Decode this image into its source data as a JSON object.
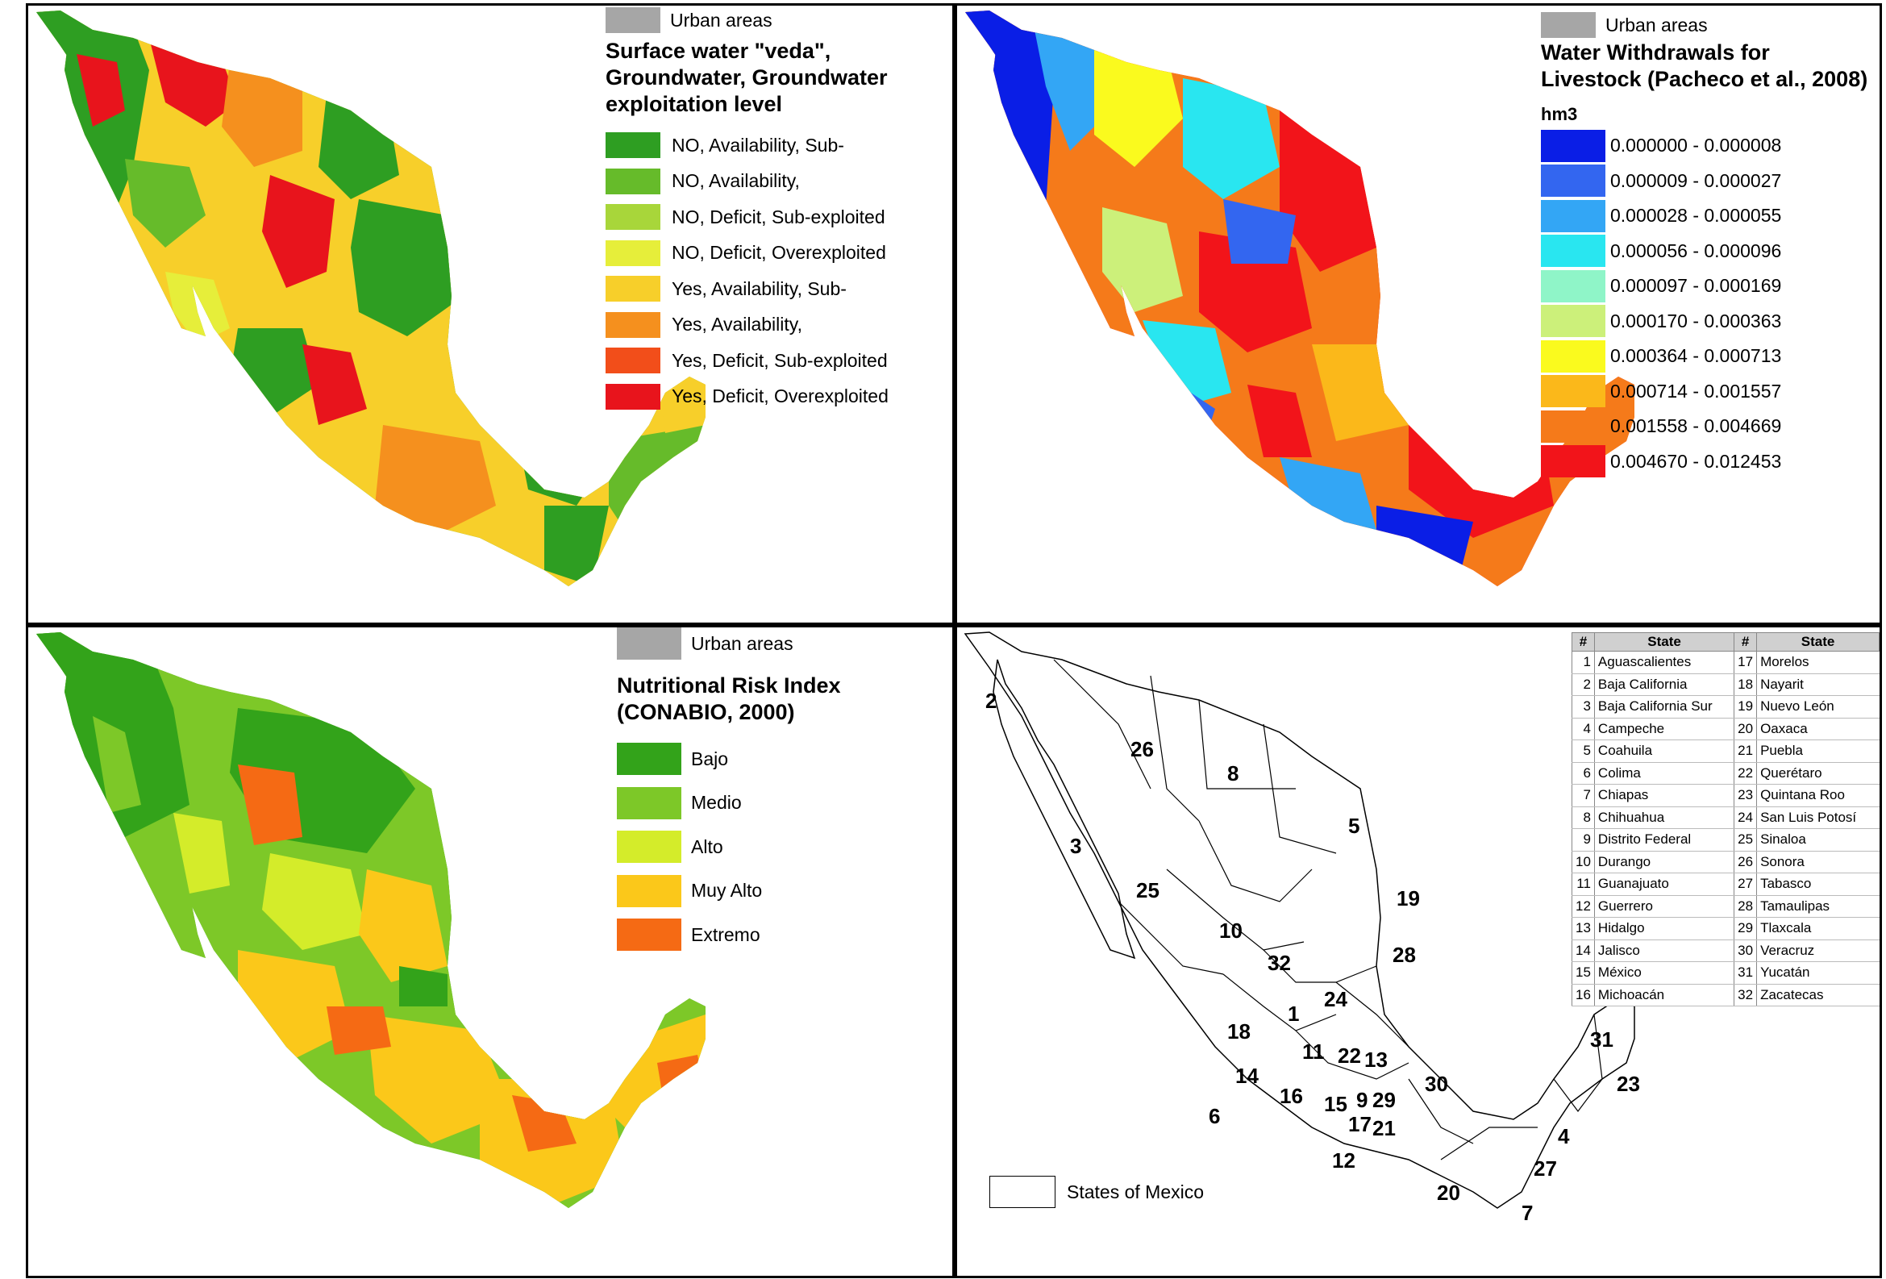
{
  "panels": {
    "surface_water": {
      "urban_label": "Urban areas",
      "title_lines": [
        "Surface water \"veda\",",
        "Groundwater, Groundwater",
        "exploitation level"
      ],
      "legend": [
        {
          "label": "NO, Availability, Sub-",
          "color": "#2e9e22"
        },
        {
          "label": "NO, Availability,",
          "color": "#66bb2a"
        },
        {
          "label": "NO, Deficit, Sub-exploited",
          "color": "#a8d63a"
        },
        {
          "label": "NO, Deficit, Overexploited",
          "color": "#e6ee3a"
        },
        {
          "label": "Yes, Availability, Sub-",
          "color": "#f7cf2a"
        },
        {
          "label": "Yes, Availability,",
          "color": "#f5901e"
        },
        {
          "label": "Yes, Deficit, Sub-exploited",
          "color": "#f24e1a"
        },
        {
          "label": "Yes, Deficit, Overexploited",
          "color": "#e8141c"
        }
      ]
    },
    "livestock": {
      "urban_label": "Urban areas",
      "title_lines": [
        "Water Withdrawals for",
        "Livestock (Pacheco et al., 2008)"
      ],
      "unit": "hm3",
      "legend": [
        {
          "label": "0.000000 - 0.000008",
          "color": "#0a1ee6"
        },
        {
          "label": "0.000009 - 0.000027",
          "color": "#3366f0"
        },
        {
          "label": "0.000028 - 0.000055",
          "color": "#33a6f5"
        },
        {
          "label": "0.000056 - 0.000096",
          "color": "#29e6f0"
        },
        {
          "label": "0.000097 - 0.000169",
          "color": "#8ff5c8"
        },
        {
          "label": "0.000170 - 0.000363",
          "color": "#ccf07a"
        },
        {
          "label": "0.000364 - 0.000713",
          "color": "#fafa1e"
        },
        {
          "label": "0.000714 - 0.001557",
          "color": "#fbb81a"
        },
        {
          "label": "0.001558 - 0.004669",
          "color": "#f57a1a"
        },
        {
          "label": "0.004670 - 0.012453",
          "color": "#f2141a"
        }
      ]
    },
    "nutritional": {
      "urban_label": "Urban areas",
      "title_lines": [
        "Nutritional Risk Index",
        "(CONABIO, 2000)"
      ],
      "legend": [
        {
          "label": "Bajo",
          "color": "#33a31a"
        },
        {
          "label": "Medio",
          "color": "#7dc828"
        },
        {
          "label": "Alto",
          "color": "#d4ec2a"
        },
        {
          "label": "Muy Alto",
          "color": "#fbc81a"
        },
        {
          "label": "Extremo",
          "color": "#f56a14"
        }
      ]
    },
    "states": {
      "legend_label": "States of Mexico",
      "table_headers": [
        "#",
        "State",
        "#",
        "State"
      ],
      "rows": [
        [
          "1",
          "Aguascalientes",
          "17",
          "Morelos"
        ],
        [
          "2",
          "Baja California",
          "18",
          "Nayarit"
        ],
        [
          "3",
          "Baja California Sur",
          "19",
          "Nuevo León"
        ],
        [
          "4",
          "Campeche",
          "20",
          "Oaxaca"
        ],
        [
          "5",
          "Coahuila",
          "21",
          "Puebla"
        ],
        [
          "6",
          "Colima",
          "22",
          "Querétaro"
        ],
        [
          "7",
          "Chiapas",
          "23",
          "Quintana Roo"
        ],
        [
          "8",
          "Chihuahua",
          "24",
          "San Luis Potosí"
        ],
        [
          "9",
          "Distrito Federal",
          "25",
          "Sinaloa"
        ],
        [
          "10",
          "Durango",
          "26",
          "Sonora"
        ],
        [
          "11",
          "Guanajuato",
          "27",
          "Tabasco"
        ],
        [
          "12",
          "Guerrero",
          "28",
          "Tamaulipas"
        ],
        [
          "13",
          "Hidalgo",
          "29",
          "Tlaxcala"
        ],
        [
          "14",
          "Jalisco",
          "30",
          "Veracruz"
        ],
        [
          "15",
          "México",
          "31",
          "Yucatán"
        ],
        [
          "16",
          "Michoacán",
          "32",
          "Zacatecas"
        ]
      ],
      "map_numbers": [
        "2",
        "26",
        "8",
        "5",
        "3",
        "25",
        "10",
        "19",
        "28",
        "32",
        "24",
        "1",
        "18",
        "11",
        "22",
        "13",
        "30",
        "14",
        "16",
        "15",
        "9",
        "29",
        "6",
        "17",
        "21",
        "12",
        "20",
        "7",
        "4",
        "23",
        "31",
        "27"
      ]
    }
  }
}
